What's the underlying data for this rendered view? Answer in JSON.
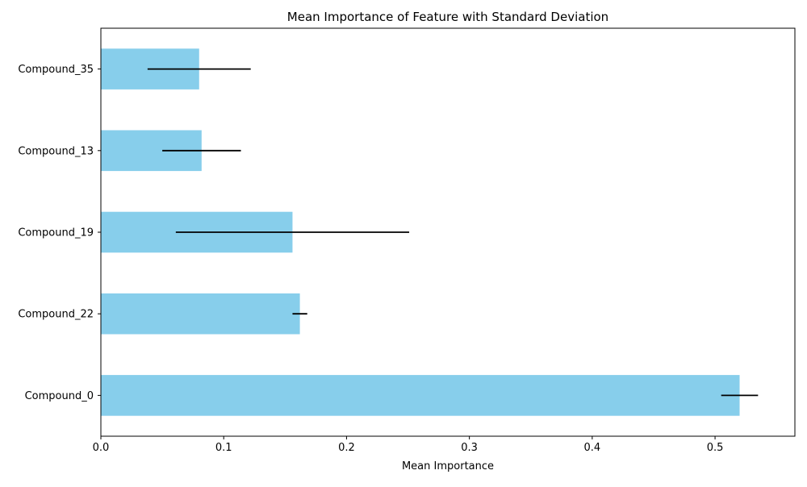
{
  "chart_data": {
    "type": "bar",
    "orientation": "horizontal",
    "title": "Mean Importance of Feature with Standard Deviation",
    "xlabel": "Mean Importance",
    "ylabel": "",
    "categories": [
      "Compound_0",
      "Compound_22",
      "Compound_19",
      "Compound_13",
      "Compound_35"
    ],
    "values": [
      0.52,
      0.162,
      0.156,
      0.082,
      0.08
    ],
    "errors": [
      0.015,
      0.006,
      0.095,
      0.032,
      0.042
    ],
    "xlim": [
      0,
      0.565
    ],
    "xticks": [
      0.0,
      0.1,
      0.2,
      0.3,
      0.4,
      0.5
    ],
    "xtick_labels": [
      "0.0",
      "0.1",
      "0.2",
      "0.3",
      "0.4",
      "0.5"
    ],
    "grid": false,
    "legend": "none",
    "bar_color": "#87ceeb",
    "error_color": "#000000"
  }
}
